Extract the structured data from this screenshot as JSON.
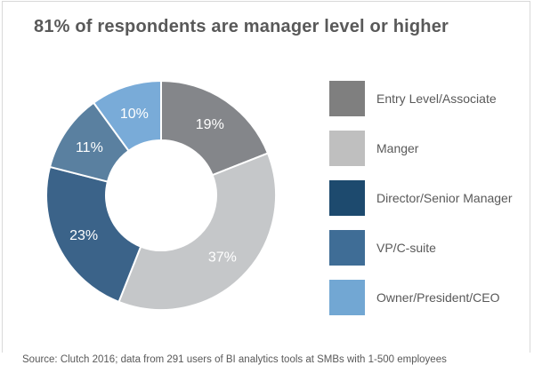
{
  "page": {
    "title": "81% of respondents are manager level or higher",
    "source_note": "Source: Clutch 2016; data from 291 users of BI analytics tools at SMBs with 1-500 employees"
  },
  "colors": {
    "background": "#ffffff",
    "frame_border": "#d9d9d9",
    "title_text": "#595959",
    "legend_text": "#595959",
    "source_text": "#595959",
    "slice_label_text": "#ffffff",
    "slice_separator": "#ffffff"
  },
  "chart_data": {
    "type": "pie",
    "subtype": "donut",
    "title": "81% of respondents are manager level or higher",
    "categories": [
      "Entry Level/Associate",
      "Manger",
      "Director/Senior Manager",
      "VP/C-suite",
      "Owner/President/CEO"
    ],
    "values": [
      19,
      37,
      23,
      11,
      10
    ],
    "unit": "%",
    "data_labels": [
      "19%",
      "37%",
      "23%",
      "11%",
      "10%"
    ],
    "legend_colors": [
      "#7f7f7f",
      "#bfbfbf",
      "#1d4a6e",
      "#3f6d96",
      "#72a7d3"
    ],
    "slice_colors": [
      "#84868a",
      "#c5c7c9",
      "#3b6389",
      "#5a80a0",
      "#79abd8"
    ],
    "start_angle_deg": 0,
    "direction": "clockwise",
    "inner_radius_ratio": 0.48,
    "legend_position": "right",
    "source_note": "Source: Clutch 2016; data from 291 users of BI analytics tools at SMBs with 1-500 employees"
  }
}
